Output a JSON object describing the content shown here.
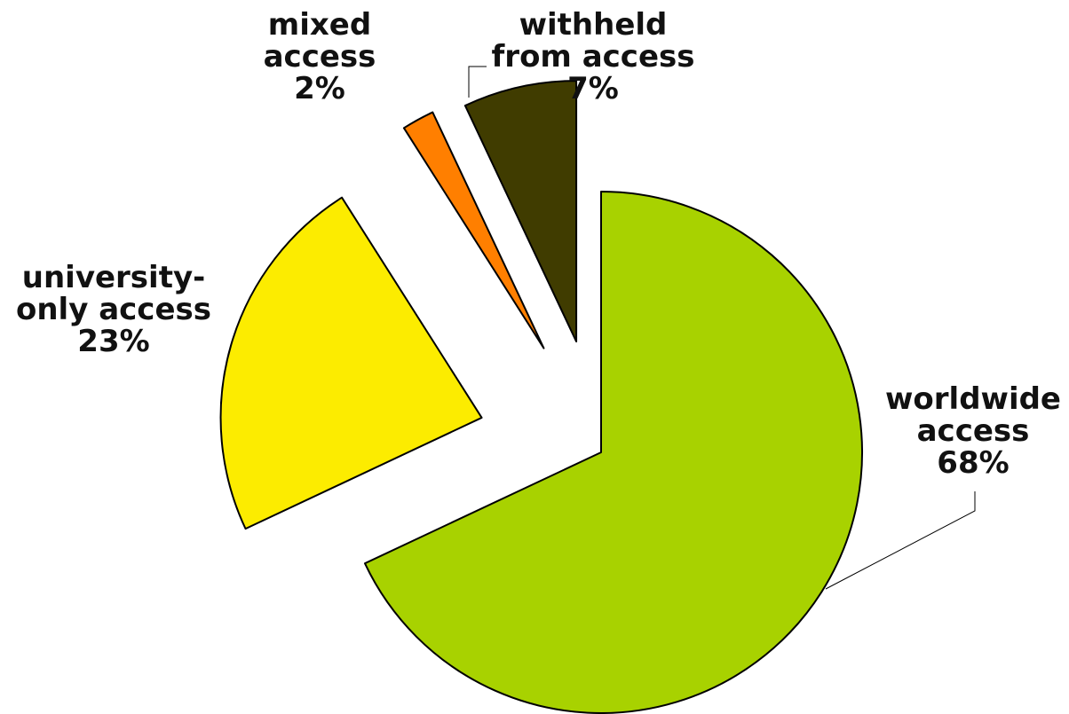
{
  "chart_data": {
    "type": "pie",
    "slices": [
      {
        "label_lines": [
          "worldwide",
          "access",
          "68%"
        ],
        "value": 68,
        "color": "#a8d200"
      },
      {
        "label_lines": [
          "university-",
          "only access",
          "23%"
        ],
        "value": 23,
        "color": "#fcec00"
      },
      {
        "label_lines": [
          "mixed",
          "access",
          "2%"
        ],
        "value": 2,
        "color": "#ff7f00"
      },
      {
        "label_lines": [
          "withheld",
          "from access",
          "7%"
        ],
        "value": 7,
        "color": "#403c00"
      }
    ]
  }
}
